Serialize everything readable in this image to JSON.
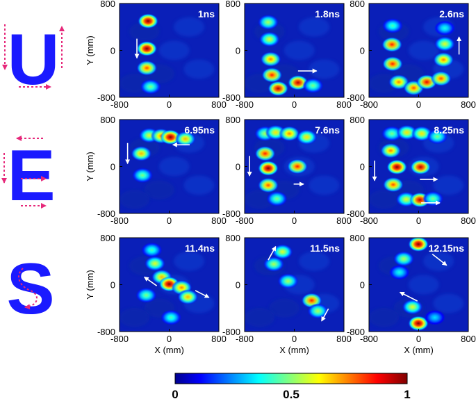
{
  "chart_data": {
    "type": "heatmap",
    "x_axis_label": "X (mm)",
    "y_axis_label": "Y (mm)",
    "xlim": [
      -800,
      800
    ],
    "ylim": [
      -800,
      800
    ],
    "x_ticks": [
      "-800",
      "0",
      "800"
    ],
    "y_ticks": [
      "800",
      "0",
      "-800"
    ],
    "colorbar": {
      "min": 0,
      "max": 1,
      "ticks": [
        "0",
        "0.5",
        "1"
      ],
      "colormap": "jet"
    },
    "rows": [
      {
        "letter": "U",
        "panels": [
          {
            "time": "1ns",
            "blobs": [
              [
                -340,
                500,
                1.0
              ],
              [
                -360,
                30,
                1.0
              ],
              [
                -360,
                -300,
                0.8
              ],
              [
                -300,
                -620,
                0.5
              ]
            ],
            "arrows": [
              [
                -520,
                200,
                -520,
                -130
              ]
            ]
          },
          {
            "time": "1.8ns",
            "blobs": [
              [
                -420,
                480,
                0.55
              ],
              [
                -400,
                190,
                0.6
              ],
              [
                -380,
                -150,
                0.75
              ],
              [
                -360,
                -420,
                0.85
              ],
              [
                -260,
                -650,
                0.95
              ],
              [
                60,
                -550,
                0.95
              ],
              [
                300,
                -600,
                0.5
              ]
            ],
            "arrows": [
              [
                60,
                -350,
                360,
                -350
              ]
            ]
          },
          {
            "time": "2.6ns",
            "blobs": [
              [
                -420,
                420,
                0.45
              ],
              [
                -430,
                100,
                0.85
              ],
              [
                -420,
                -230,
                0.85
              ],
              [
                -320,
                -540,
                0.75
              ],
              [
                -80,
                -640,
                0.8
              ],
              [
                130,
                -540,
                0.9
              ],
              [
                360,
                -480,
                0.8
              ],
              [
                400,
                -160,
                0.75
              ],
              [
                420,
                110,
                0.6
              ],
              [
                420,
                380,
                0.4
              ]
            ],
            "arrows": [
              [
                650,
                -70,
                650,
                230
              ]
            ]
          }
        ]
      },
      {
        "letter": "E",
        "panels": [
          {
            "time": "6.95ns",
            "blobs": [
              [
                -320,
                530,
                0.6
              ],
              [
                -130,
                520,
                0.75
              ],
              [
                20,
                500,
                1.0
              ],
              [
                260,
                470,
                0.7
              ],
              [
                -450,
                220,
                0.7
              ],
              [
                -430,
                -150,
                0.5
              ]
            ],
            "arrows": [
              [
                -670,
                400,
                -670,
                50
              ],
              [
                330,
                370,
                60,
                370
              ]
            ]
          },
          {
            "time": "7.6ns",
            "blobs": [
              [
                -470,
                560,
                0.55
              ],
              [
                -300,
                580,
                0.65
              ],
              [
                -80,
                560,
                0.75
              ],
              [
                200,
                500,
                0.65
              ],
              [
                -470,
                220,
                0.85
              ],
              [
                -420,
                -30,
                1.0
              ],
              [
                50,
                0,
                0.85
              ],
              [
                -420,
                -320,
                0.8
              ],
              [
                -280,
                -550,
                0.5
              ]
            ],
            "arrows": [
              [
                -720,
                180,
                -720,
                -160
              ],
              [
                -10,
                -300,
                150,
                -300
              ]
            ]
          },
          {
            "time": "8.25ns",
            "blobs": [
              [
                -430,
                560,
                0.5
              ],
              [
                -190,
                580,
                0.65
              ],
              [
                50,
                560,
                0.65
              ],
              [
                300,
                510,
                0.5
              ],
              [
                -450,
                270,
                0.75
              ],
              [
                -350,
                -10,
                1.0
              ],
              [
                30,
                -10,
                0.95
              ],
              [
                -410,
                -310,
                0.8
              ],
              [
                -200,
                -560,
                0.6
              ],
              [
                20,
                -570,
                0.95
              ],
              [
                230,
                -550,
                0.5
              ]
            ],
            "arrows": [
              [
                -710,
                100,
                -710,
                -240
              ],
              [
                20,
                -220,
                300,
                -220
              ],
              [
                40,
                -620,
                340,
                -620
              ]
            ]
          }
        ]
      },
      {
        "letter": "S",
        "panels": [
          {
            "time": "11.4ns",
            "blobs": [
              [
                -280,
                590,
                0.45
              ],
              [
                -230,
                360,
                0.6
              ],
              [
                -120,
                130,
                0.7
              ],
              [
                0,
                10,
                1.0
              ],
              [
                200,
                -50,
                0.75
              ],
              [
                300,
                -210,
                0.7
              ],
              [
                -370,
                -180,
                0.5
              ],
              [
                30,
                -560,
                0.45
              ]
            ],
            "arrows": [
              [
                -200,
                -20,
                -400,
                130
              ],
              [
                420,
                -100,
                640,
                -220
              ]
            ]
          },
          {
            "time": "11.5ns",
            "blobs": [
              [
                -190,
                560,
                0.6
              ],
              [
                -330,
                350,
                0.55
              ],
              [
                -100,
                60,
                0.55
              ],
              [
                280,
                -270,
                0.85
              ],
              [
                380,
                -450,
                0.55
              ]
            ],
            "arrows": [
              [
                -420,
                420,
                -300,
                650
              ],
              [
                550,
                -410,
                440,
                -620
              ]
            ]
          },
          {
            "time": "12.15ns",
            "blobs": [
              [
                -5,
                690,
                1.0
              ],
              [
                -240,
                440,
                0.55
              ],
              [
                -310,
                210,
                0.4
              ],
              [
                -100,
                -380,
                0.6
              ],
              [
                -5,
                -660,
                1.0
              ],
              [
                260,
                -560,
                0.35
              ]
            ],
            "arrows": [
              [
                220,
                520,
                450,
                330
              ],
              [
                -20,
                -280,
                -300,
                -130
              ]
            ]
          }
        ]
      }
    ]
  }
}
